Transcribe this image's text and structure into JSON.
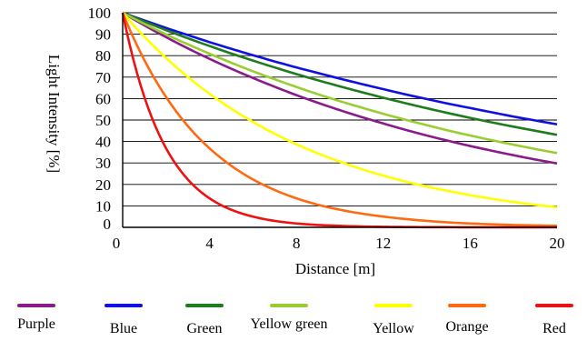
{
  "chart_data": {
    "type": "line",
    "xlabel": "Distance [m]",
    "ylabel": "Light Intensity [%]",
    "xlim": [
      0,
      20
    ],
    "ylim": [
      0,
      100
    ],
    "x_ticks": [
      "0",
      "4",
      "8",
      "12",
      "16",
      "20"
    ],
    "y_ticks": [
      "0",
      "10",
      "20",
      "30",
      "40",
      "50",
      "60",
      "70",
      "80",
      "90",
      "100"
    ],
    "grid": "horizontal",
    "legend": "bottom",
    "x": [
      0,
      1,
      2,
      3,
      4,
      5,
      6,
      7,
      8,
      9,
      10,
      11,
      12,
      13,
      14,
      15,
      16,
      17,
      18,
      19,
      20
    ],
    "series": [
      {
        "name": "Purple",
        "color": "#8B1A8B",
        "values": [
          100,
          94.1,
          88.6,
          83.4,
          78.5,
          73.9,
          69.6,
          65.5,
          61.6,
          58.0,
          54.6,
          51.4,
          48.4,
          45.5,
          42.8,
          40.3,
          37.9,
          35.7,
          33.6,
          31.6,
          29.8
        ]
      },
      {
        "name": "Blue",
        "color": "#1010E0",
        "values": [
          100,
          96.4,
          92.9,
          89.6,
          86.3,
          83.2,
          80.2,
          77.3,
          74.5,
          71.9,
          69.3,
          66.8,
          64.4,
          62.0,
          59.8,
          57.6,
          55.6,
          53.6,
          51.6,
          49.8,
          48.0
        ]
      },
      {
        "name": "Green",
        "color": "#1E7B1E",
        "values": [
          100,
          95.9,
          91.9,
          88.1,
          84.5,
          81.0,
          77.7,
          74.5,
          71.4,
          68.5,
          65.7,
          63.0,
          60.4,
          57.9,
          55.5,
          53.2,
          51.0,
          48.9,
          46.9,
          45.0,
          43.1
        ]
      },
      {
        "name": "Yellow green",
        "color": "#9ACD32",
        "values": [
          100,
          94.8,
          89.9,
          85.3,
          80.9,
          76.7,
          72.7,
          69.0,
          65.4,
          62.0,
          58.8,
          55.8,
          52.9,
          50.2,
          47.6,
          45.1,
          42.8,
          40.6,
          38.5,
          36.5,
          34.6
        ]
      },
      {
        "name": "Yellow",
        "color": "#FFFF00",
        "values": [
          100,
          88.8,
          78.9,
          70.1,
          62.2,
          55.3,
          49.1,
          43.6,
          38.7,
          34.4,
          30.6,
          27.1,
          24.1,
          21.4,
          19.0,
          16.9,
          15.0,
          13.3,
          11.8,
          10.5,
          9.4
        ]
      },
      {
        "name": "Orange",
        "color": "#FF6A10",
        "values": [
          100,
          77.9,
          60.7,
          47.2,
          36.8,
          28.7,
          22.3,
          17.4,
          13.5,
          10.5,
          8.2,
          6.4,
          5.0,
          3.9,
          3.0,
          2.3,
          1.8,
          1.4,
          1.1,
          0.9,
          0.7
        ]
      },
      {
        "name": "Red",
        "color": "#EE1111",
        "values": [
          100,
          60.7,
          36.8,
          22.3,
          13.5,
          8.2,
          5.0,
          3.0,
          1.8,
          1.1,
          0.7,
          0.4,
          0.25,
          0.15,
          0.09,
          0.06,
          0.03,
          0.02,
          0.01,
          0.01,
          0.0
        ]
      }
    ]
  }
}
